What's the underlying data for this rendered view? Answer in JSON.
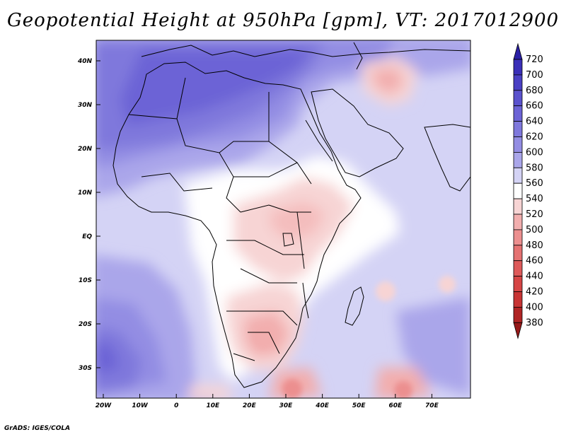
{
  "title": "Geopotential Height at 950hPa [gpm], VT: 2017012900",
  "credit": "GrADS: IGES/COLA",
  "map": {
    "region": "Africa",
    "variable": "Geopotential Height",
    "level": "950hPa",
    "units": "gpm",
    "valid_time": "2017012900",
    "lon_labels": [
      "20W",
      "10W",
      "0",
      "10E",
      "20E",
      "30E",
      "40E",
      "50E",
      "60E",
      "70E"
    ],
    "lat_labels": [
      "40N",
      "30N",
      "20N",
      "10N",
      "EQ",
      "10S",
      "20S",
      "30S"
    ]
  },
  "colorbar": {
    "levels": [
      "720",
      "700",
      "680",
      "660",
      "640",
      "620",
      "600",
      "580",
      "560",
      "540",
      "520",
      "500",
      "480",
      "460",
      "440",
      "420",
      "400",
      "380"
    ],
    "colors": [
      "#2a1fa6",
      "#3a2fb8",
      "#4a40c4",
      "#5a52cd",
      "#6c63d6",
      "#7f78dc",
      "#938de3",
      "#aaa6ea",
      "#d4d3f5",
      "#ffffff",
      "#f7d4d4",
      "#f2aeae",
      "#ec8f8f",
      "#e57272",
      "#de5a5a",
      "#d64545",
      "#c83434",
      "#b02424",
      "#961919"
    ]
  }
}
